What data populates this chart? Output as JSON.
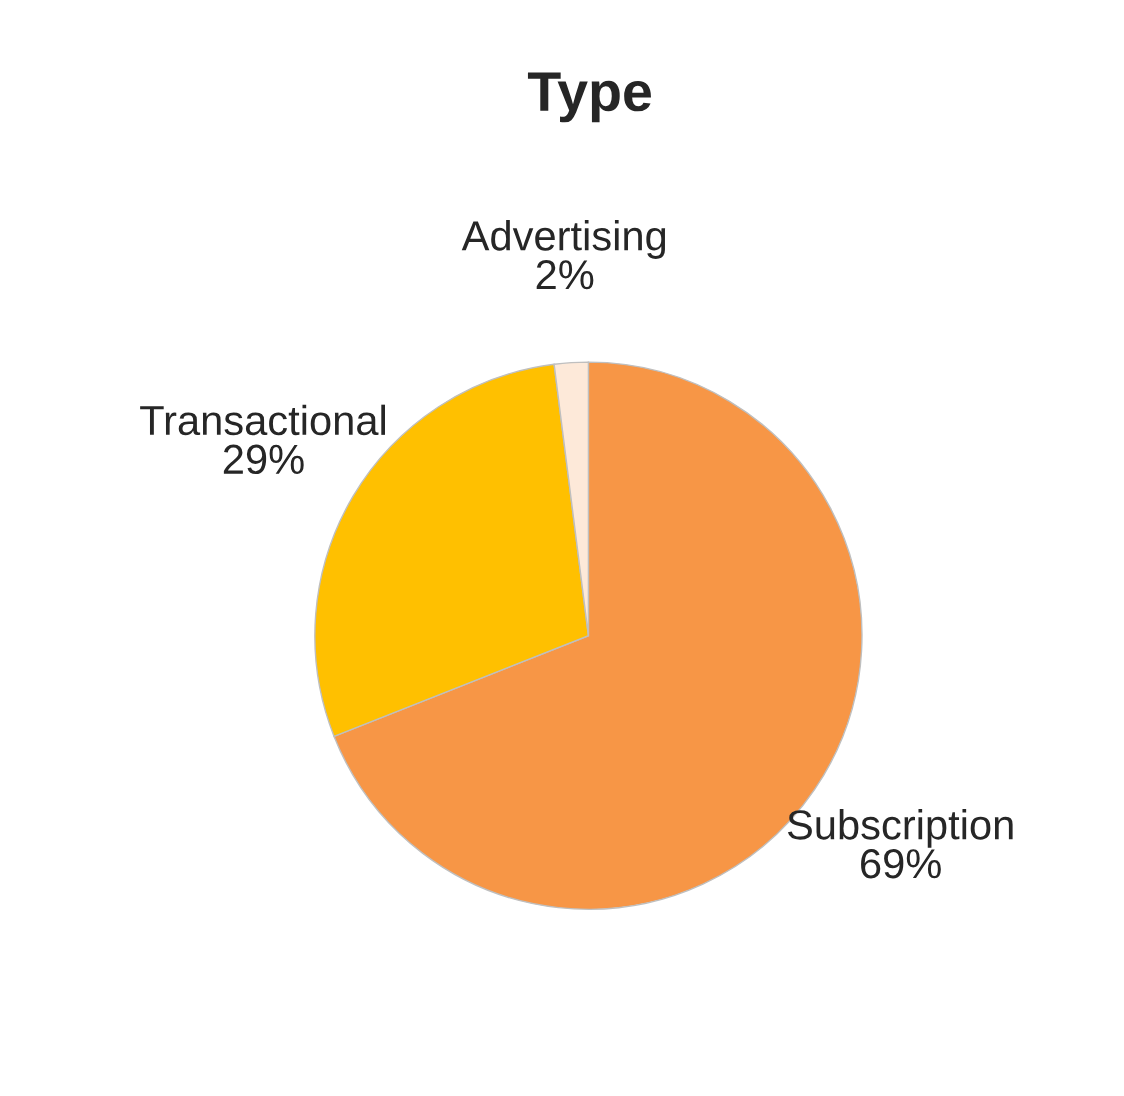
{
  "chart_data": {
    "type": "pie",
    "title": "Type",
    "categories": [
      "Subscription",
      "Transactional",
      "Advertising"
    ],
    "values": [
      69,
      29,
      2
    ],
    "value_labels": [
      "69%",
      "29%",
      "2%"
    ],
    "colors": [
      "#f79646",
      "#ffc000",
      "#fde9d9"
    ]
  }
}
